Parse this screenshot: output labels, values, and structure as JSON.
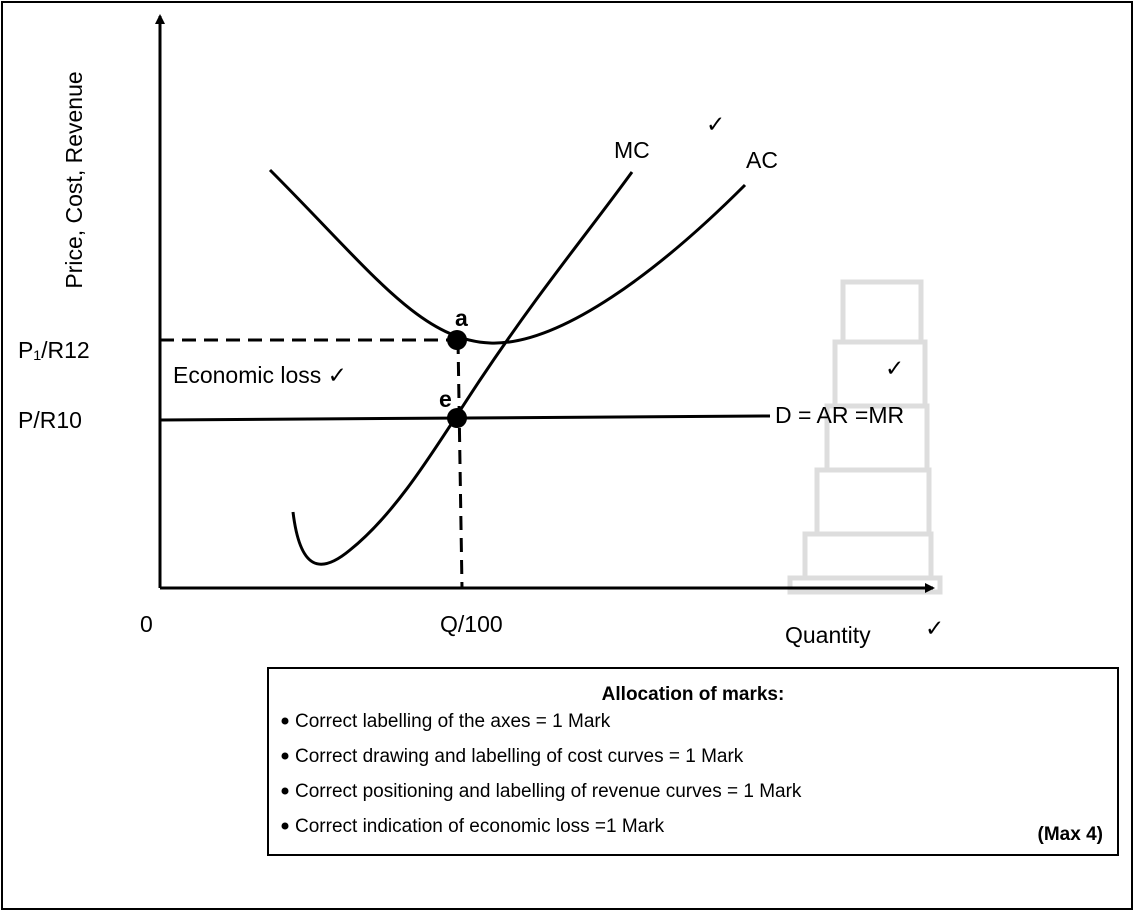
{
  "diagram": {
    "y_axis_label": "Price, Cost, Revenue",
    "x_axis_label": "Quantity",
    "origin": "0",
    "curves": {
      "mc": "MC",
      "ac": "AC",
      "demand": "D = AR =MR"
    },
    "points": {
      "a": "a",
      "e": "e"
    },
    "y_labels": {
      "p1": "P₁/R12",
      "p": "P/R10"
    },
    "x_labels": {
      "q": "Q/100"
    },
    "loss_label": "Economic loss ✓",
    "ticks": {
      "mc": "✓",
      "tower": "✓",
      "quantity": "✓"
    }
  },
  "marks_box": {
    "title": "Allocation of marks:",
    "items": [
      "Correct labelling of the axes = 1 Mark",
      "Correct drawing and labelling of cost curves = 1 Mark",
      "Correct positioning and labelling of revenue curves = 1 Mark",
      "Correct indication of economic loss =1 Mark"
    ],
    "max": "(Max 4)"
  }
}
